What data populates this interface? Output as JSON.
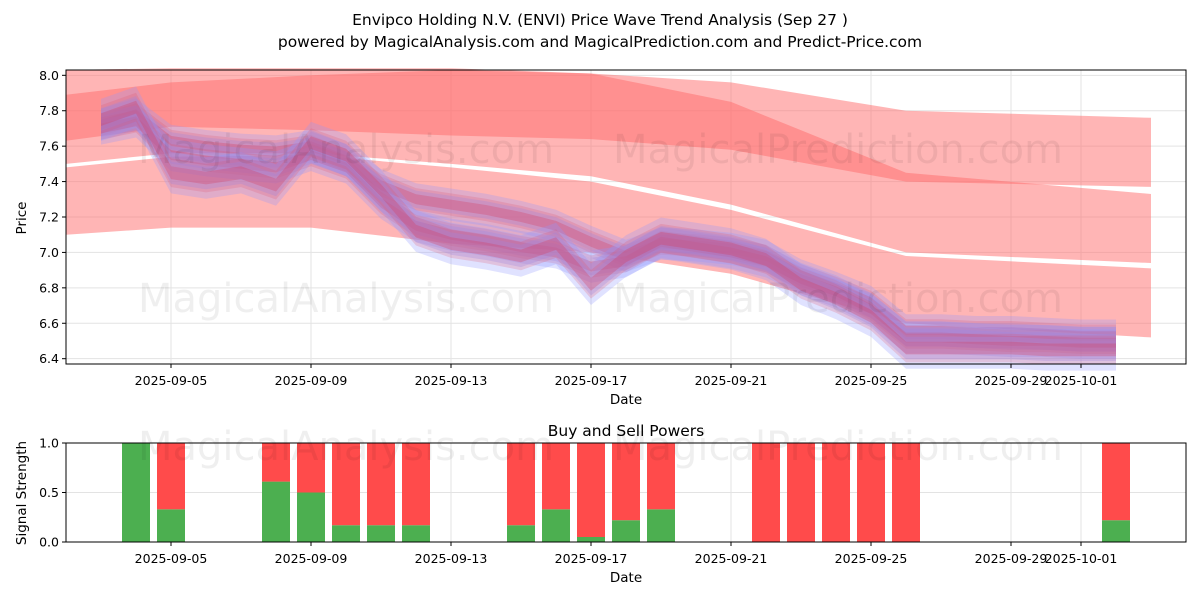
{
  "title_line1": "Envipco Holding N.V. (ENVI) Price Wave Trend Analysis (Sep 27 )",
  "title_line2": "powered by MagicalAnalysis.com and MagicalPrediction.com and Predict-Price.com",
  "watermarks": [
    "MagicalAnalysis.com",
    "MagicalPrediction.com"
  ],
  "colors": {
    "buy": "#4caf50",
    "sell": "#ff4b4b",
    "red_band": "#ff6b6b",
    "blue_band": "#8f96ff"
  },
  "chart_data": [
    {
      "type": "area",
      "title": "",
      "xlabel": "Date",
      "ylabel": "Price",
      "xlim": [
        "2025-09-02",
        "2025-10-04"
      ],
      "ylim": [
        6.37,
        8.03
      ],
      "xticks": [
        "2025-09-05",
        "2025-09-09",
        "2025-09-13",
        "2025-09-17",
        "2025-09-21",
        "2025-09-25",
        "2025-09-29",
        "2025-10-01"
      ],
      "yticks": [
        "6.4",
        "6.6",
        "6.8",
        "7.0",
        "7.2",
        "7.4",
        "7.6",
        "7.8",
        "8.0"
      ],
      "grid": true,
      "forecast_bands": [
        {
          "name": "upper-band",
          "x": [
            "2025-09-02",
            "2025-09-05",
            "2025-09-09",
            "2025-09-13",
            "2025-09-17",
            "2025-09-21",
            "2025-09-26",
            "2025-10-03"
          ],
          "lower": [
            7.63,
            7.71,
            7.69,
            7.66,
            7.64,
            7.58,
            7.4,
            7.37
          ],
          "upper": [
            7.89,
            7.96,
            8.0,
            8.03,
            8.01,
            7.96,
            7.8,
            7.76
          ]
        },
        {
          "name": "mid-band",
          "x": [
            "2025-09-02",
            "2025-09-05",
            "2025-09-09",
            "2025-09-13",
            "2025-09-17",
            "2025-09-21",
            "2025-09-26",
            "2025-10-03"
          ],
          "lower": [
            7.5,
            7.56,
            7.56,
            7.5,
            7.43,
            7.27,
            7.0,
            6.94
          ],
          "upper": [
            8.03,
            8.04,
            8.04,
            8.04,
            8.01,
            7.85,
            7.45,
            7.33
          ]
        },
        {
          "name": "lower-band",
          "x": [
            "2025-09-02",
            "2025-09-05",
            "2025-09-09",
            "2025-09-13",
            "2025-09-17",
            "2025-09-21",
            "2025-09-26",
            "2025-10-03"
          ],
          "lower": [
            7.1,
            7.14,
            7.14,
            7.05,
            7.0,
            6.88,
            6.6,
            6.52
          ],
          "upper": [
            7.48,
            7.54,
            7.55,
            7.48,
            7.4,
            7.24,
            6.98,
            6.91
          ]
        }
      ],
      "price_paths": [
        {
          "x": [
            "2025-09-03",
            "2025-09-04",
            "2025-09-05",
            "2025-09-06",
            "2025-09-07",
            "2025-09-08",
            "2025-09-09",
            "2025-09-10",
            "2025-09-11",
            "2025-09-12",
            "2025-09-13",
            "2025-09-14",
            "2025-09-15",
            "2025-09-16",
            "2025-09-17",
            "2025-09-18",
            "2025-09-19",
            "2025-09-20",
            "2025-09-21",
            "2025-09-22",
            "2025-09-23",
            "2025-09-24",
            "2025-09-25",
            "2025-09-26",
            "2025-09-27",
            "2025-09-28",
            "2025-09-29",
            "2025-09-30",
            "2025-10-01",
            "2025-10-02"
          ],
          "center": [
            7.72,
            7.78,
            7.63,
            7.6,
            7.58,
            7.57,
            7.6,
            7.52,
            7.38,
            7.3,
            7.27,
            7.24,
            7.2,
            7.15,
            7.06,
            6.98,
            7.05,
            7.04,
            7.02,
            6.98,
            6.87,
            6.8,
            6.72,
            6.56,
            6.56,
            6.55,
            6.55,
            6.54,
            6.53,
            6.53
          ],
          "half_width": 0.07
        },
        {
          "x": [
            "2025-09-03",
            "2025-09-04",
            "2025-09-05",
            "2025-09-06",
            "2025-09-07",
            "2025-09-08",
            "2025-09-09",
            "2025-09-10",
            "2025-09-11",
            "2025-09-12",
            "2025-09-13",
            "2025-09-14",
            "2025-09-15",
            "2025-09-16",
            "2025-09-17",
            "2025-09-18",
            "2025-09-19",
            "2025-09-20",
            "2025-09-21",
            "2025-09-22",
            "2025-09-23",
            "2025-09-24",
            "2025-09-25",
            "2025-09-26",
            "2025-09-27",
            "2025-09-28",
            "2025-09-29",
            "2025-09-30",
            "2025-10-01",
            "2025-10-02"
          ],
          "center": [
            7.7,
            7.74,
            7.55,
            7.52,
            7.5,
            7.48,
            7.55,
            7.48,
            7.28,
            7.15,
            7.1,
            7.07,
            7.03,
            7.0,
            6.92,
            6.95,
            7.06,
            7.03,
            7.0,
            6.95,
            6.85,
            6.78,
            6.68,
            6.52,
            6.52,
            6.51,
            6.5,
            6.5,
            6.49,
            6.49
          ],
          "half_width": 0.07
        },
        {
          "x": [
            "2025-09-03",
            "2025-09-04",
            "2025-09-05",
            "2025-09-06",
            "2025-09-07",
            "2025-09-08",
            "2025-09-09",
            "2025-09-10",
            "2025-09-11",
            "2025-09-12",
            "2025-09-13",
            "2025-09-14",
            "2025-09-15",
            "2025-09-16",
            "2025-09-17",
            "2025-09-18",
            "2025-09-19",
            "2025-09-20",
            "2025-09-21",
            "2025-09-22",
            "2025-09-23",
            "2025-09-24",
            "2025-09-25",
            "2025-09-26",
            "2025-09-27",
            "2025-09-28",
            "2025-09-29",
            "2025-09-30",
            "2025-10-01",
            "2025-10-02"
          ],
          "center": [
            7.75,
            7.82,
            7.45,
            7.42,
            7.45,
            7.38,
            7.62,
            7.55,
            7.35,
            7.12,
            7.05,
            7.02,
            6.98,
            7.05,
            6.82,
            6.98,
            7.08,
            7.05,
            7.02,
            6.96,
            6.82,
            6.74,
            6.64,
            6.46,
            6.46,
            6.46,
            6.46,
            6.45,
            6.45,
            6.45
          ],
          "half_width": 0.09
        }
      ]
    },
    {
      "type": "bar",
      "title": "Buy and Sell Powers",
      "xlabel": "Date",
      "ylabel": "Signal Strength",
      "ylim": [
        0,
        1
      ],
      "yticks": [
        "0.0",
        "0.5",
        "1.0"
      ],
      "xticks": [
        "2025-09-05",
        "2025-09-09",
        "2025-09-13",
        "2025-09-17",
        "2025-09-21",
        "2025-09-25",
        "2025-09-29",
        "2025-10-01"
      ],
      "categories": [
        "2025-09-04",
        "2025-09-05",
        "2025-09-08",
        "2025-09-09",
        "2025-09-10",
        "2025-09-11",
        "2025-09-12",
        "2025-09-15",
        "2025-09-16",
        "2025-09-17",
        "2025-09-18",
        "2025-09-19",
        "2025-09-22",
        "2025-09-23",
        "2025-09-24",
        "2025-09-25",
        "2025-09-26",
        "2025-10-02"
      ],
      "series": [
        {
          "name": "Buy",
          "values": [
            1.0,
            0.33,
            0.61,
            0.5,
            0.17,
            0.17,
            0.17,
            0.17,
            0.33,
            0.05,
            0.22,
            0.33,
            0.0,
            0.0,
            0.0,
            0.0,
            0.0,
            0.22
          ]
        },
        {
          "name": "Sell",
          "values": [
            0.0,
            0.67,
            0.39,
            0.5,
            0.83,
            0.83,
            0.83,
            0.83,
            0.67,
            0.95,
            0.78,
            0.67,
            1.0,
            1.0,
            1.0,
            1.0,
            1.0,
            0.78
          ]
        }
      ]
    }
  ]
}
